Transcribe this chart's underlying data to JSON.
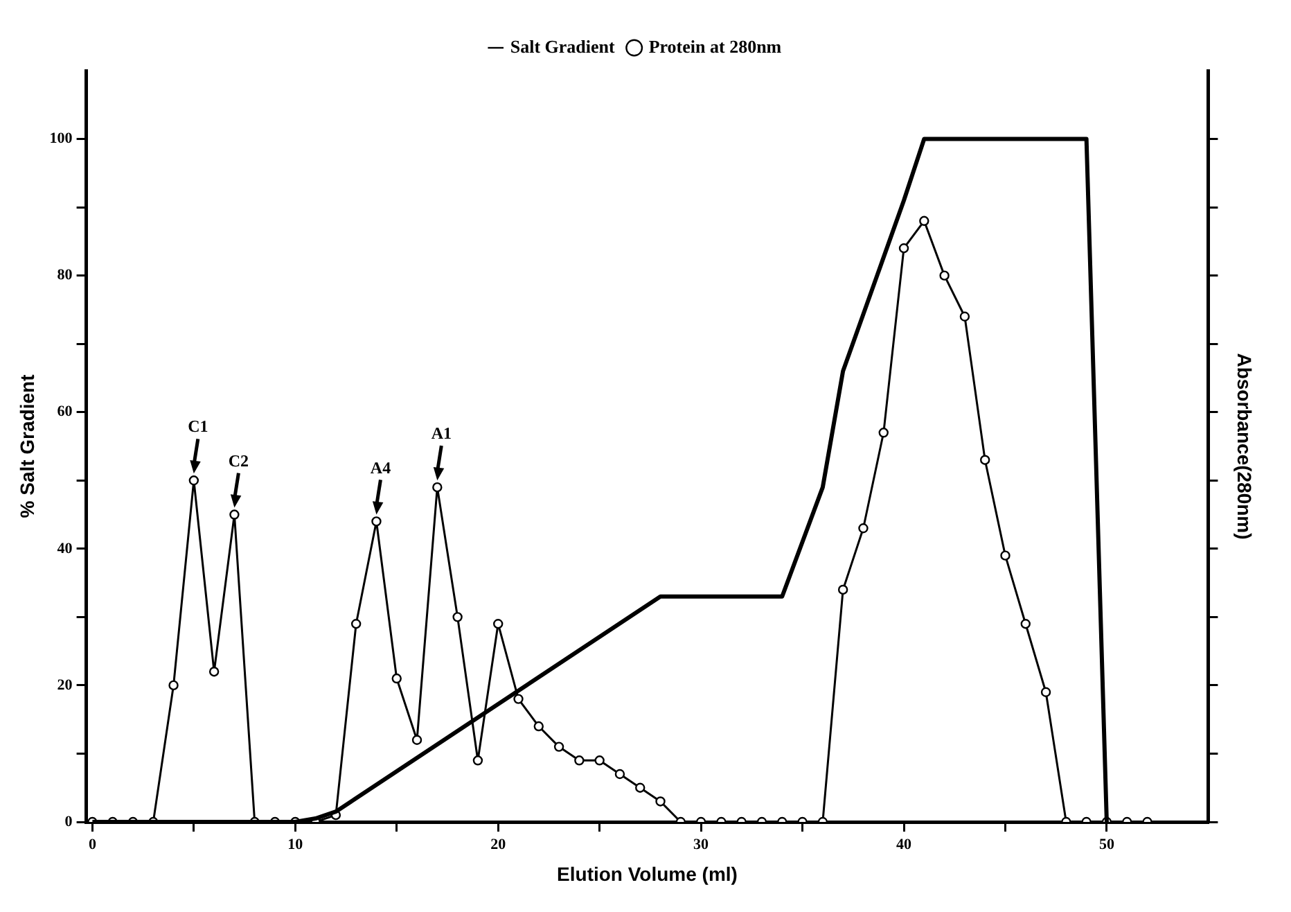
{
  "chart_data": {
    "type": "line",
    "xlabel": "Elution Volume (ml)",
    "ylabel": "% Salt Gradient",
    "y2label": "Absorbance(280nm)",
    "xlim": [
      -0.3,
      55
    ],
    "xticks": [
      0,
      {
        "value": 5,
        "label": null
      },
      10,
      {
        "value": 15,
        "label": null
      },
      20,
      {
        "value": 25,
        "label": null
      },
      30,
      {
        "value": 35,
        "label": null
      },
      40,
      {
        "value": 45,
        "label": null
      },
      50
    ],
    "ylim": [
      0,
      110
    ],
    "yticks": [
      0,
      {
        "value": 10,
        "label": null
      },
      20,
      {
        "value": 30,
        "label": null
      },
      40,
      {
        "value": 50,
        "label": null
      },
      60,
      {
        "value": 70,
        "label": null
      },
      80,
      {
        "value": 90,
        "label": null
      },
      100
    ],
    "grid": false,
    "legend": "top",
    "series": [
      {
        "name": "Salt Gradient",
        "color": "#000000",
        "marker": "none",
        "x": [
          0,
          10,
          11,
          12,
          28,
          34,
          36,
          37,
          40,
          41,
          49,
          50
        ],
        "values": [
          0,
          0,
          0.5,
          1.5,
          33,
          33,
          49,
          66,
          91,
          100,
          100,
          0
        ]
      },
      {
        "name": "Protein at 280nm",
        "color": "#000000",
        "marker": "circle",
        "x": [
          0,
          1,
          2,
          3,
          4,
          5,
          6,
          7,
          8,
          9,
          10,
          11,
          12,
          13,
          14,
          15,
          16,
          17,
          18,
          19,
          20,
          21,
          22,
          23,
          24,
          25,
          26,
          27,
          28,
          29,
          30,
          31,
          32,
          33,
          34,
          35,
          36,
          37,
          38,
          39,
          40,
          41,
          42,
          43,
          44,
          45,
          46,
          47,
          48,
          49,
          50,
          51,
          52
        ],
        "values": [
          0,
          0,
          0,
          0,
          20,
          50,
          22,
          45,
          0,
          0,
          0,
          0,
          1,
          29,
          44,
          21,
          12,
          49,
          30,
          9,
          29,
          18,
          14,
          11,
          9,
          9,
          7,
          5,
          3,
          0,
          0,
          0,
          0,
          0,
          0,
          0,
          0,
          34,
          43,
          57,
          84,
          88,
          80,
          74,
          53,
          39,
          29,
          19,
          0,
          0,
          0,
          0,
          0
        ]
      }
    ],
    "annotations": [
      {
        "text": "C1",
        "x": 5,
        "y": 50
      },
      {
        "text": "C2",
        "x": 7,
        "y": 45
      },
      {
        "text": "A4",
        "x": 14,
        "y": 44
      },
      {
        "text": "A1",
        "x": 17,
        "y": 49
      }
    ]
  }
}
